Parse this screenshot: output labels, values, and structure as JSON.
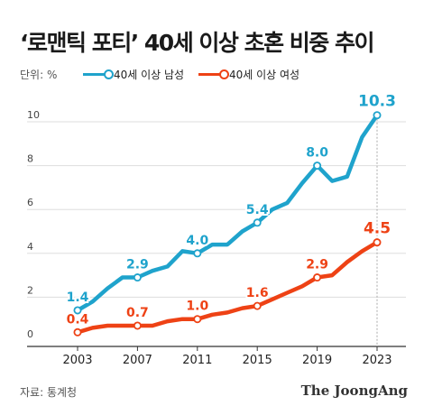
{
  "header": {
    "title": "‘로맨틱 포티’ 40세 이상 초혼 비중 추이",
    "unit": "단위: %"
  },
  "legend": {
    "male_label": "40세 이상 남성",
    "female_label": "40세 이상 여성"
  },
  "footer": {
    "source": "자료: 통계청",
    "brand": "The JoongAng"
  },
  "colors": {
    "male": "#1fa3cc",
    "female": "#ee4215",
    "grid": "#dddddd",
    "axis": "#333333"
  },
  "chart_data": {
    "type": "line",
    "title": "‘로맨틱 포티’ 40세 이상 초혼 비중 추이",
    "ylabel": "단위: %",
    "ylim": [
      0,
      10
    ],
    "yticks": [
      0,
      2,
      4,
      6,
      8,
      10
    ],
    "xlim": [
      2003,
      2023
    ],
    "xticks": [
      2003,
      2007,
      2011,
      2015,
      2019,
      2023
    ],
    "grid": true,
    "legend_position": "top",
    "series": [
      {
        "name": "40세 이상 남성",
        "color": "#1fa3cc",
        "x": [
          2003,
          2004,
          2005,
          2006,
          2007,
          2008,
          2009,
          2010,
          2011,
          2012,
          2013,
          2014,
          2015,
          2016,
          2017,
          2018,
          2019,
          2020,
          2021,
          2022,
          2023
        ],
        "values": [
          1.4,
          1.8,
          2.4,
          2.9,
          2.9,
          3.2,
          3.4,
          4.1,
          4.0,
          4.4,
          4.4,
          5.0,
          5.4,
          6.0,
          6.3,
          7.2,
          8.0,
          7.3,
          7.5,
          9.3,
          10.3
        ],
        "labels": [
          {
            "x": 2003,
            "text": "1.4"
          },
          {
            "x": 2007,
            "text": "2.9"
          },
          {
            "x": 2011,
            "text": "4.0"
          },
          {
            "x": 2015,
            "text": "5.4"
          },
          {
            "x": 2019,
            "text": "8.0"
          },
          {
            "x": 2023,
            "text": "10.3"
          }
        ]
      },
      {
        "name": "40세 이상 여성",
        "color": "#ee4215",
        "x": [
          2003,
          2004,
          2005,
          2006,
          2007,
          2008,
          2009,
          2010,
          2011,
          2012,
          2013,
          2014,
          2015,
          2016,
          2017,
          2018,
          2019,
          2020,
          2021,
          2022,
          2023
        ],
        "values": [
          0.4,
          0.6,
          0.7,
          0.7,
          0.7,
          0.7,
          0.9,
          1.0,
          1.0,
          1.2,
          1.3,
          1.5,
          1.6,
          1.9,
          2.2,
          2.5,
          2.9,
          3.0,
          3.6,
          4.1,
          4.5
        ],
        "labels": [
          {
            "x": 2003,
            "text": "0.4"
          },
          {
            "x": 2007,
            "text": "0.7"
          },
          {
            "x": 2011,
            "text": "1.0"
          },
          {
            "x": 2015,
            "text": "1.6"
          },
          {
            "x": 2019,
            "text": "2.9"
          },
          {
            "x": 2023,
            "text": "4.5"
          }
        ]
      }
    ]
  }
}
